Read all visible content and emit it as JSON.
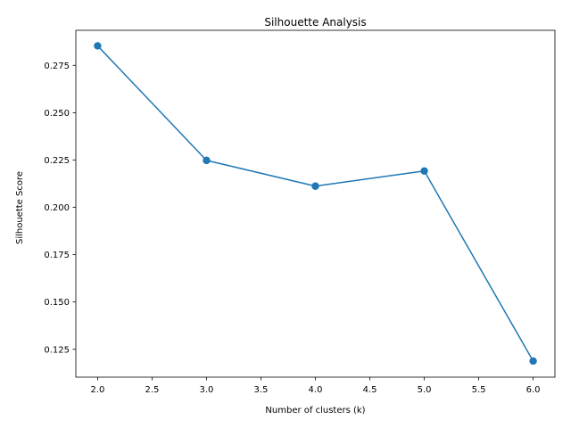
{
  "chart_data": {
    "type": "line",
    "title": "Silhouette Analysis",
    "xlabel": "Number of clusters (k)",
    "ylabel": "Silhouette Score",
    "xlim": [
      1.8,
      6.2
    ],
    "ylim": [
      0.1103,
      0.2935
    ],
    "x_ticks": [
      "2.0",
      "2.5",
      "3.0",
      "3.5",
      "4.0",
      "4.5",
      "5.0",
      "5.5",
      "6.0"
    ],
    "y_ticks": [
      "0.125",
      "0.150",
      "0.175",
      "0.200",
      "0.225",
      "0.250",
      "0.275"
    ],
    "grid": false,
    "series": [
      {
        "x": [
          2,
          3,
          4,
          5,
          6
        ],
        "values": [
          0.2853,
          0.2248,
          0.2112,
          0.2192,
          0.1188
        ],
        "color": "#1f77b4",
        "marker": "circle"
      }
    ]
  }
}
